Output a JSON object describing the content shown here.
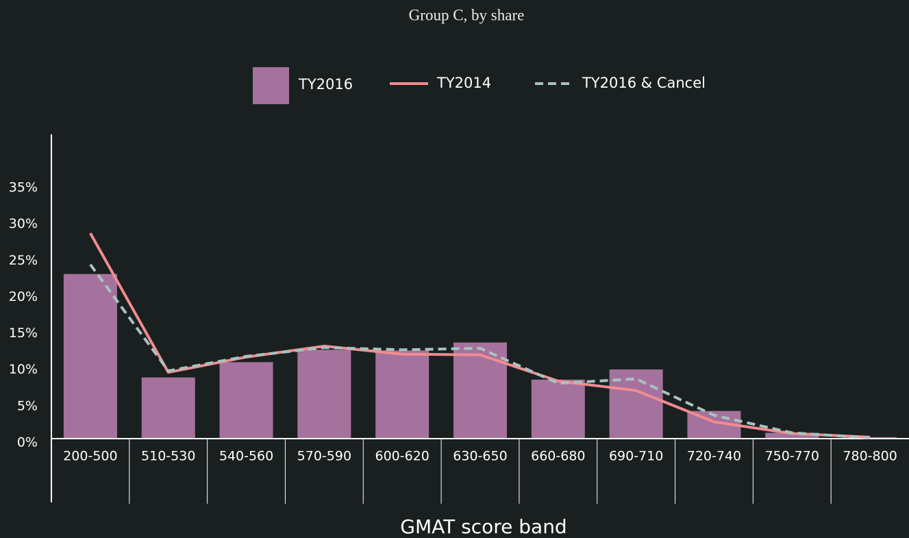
{
  "chart_data": {
    "type": "bar",
    "title": "Group C, by share",
    "x_label": "GMAT score band",
    "categories": [
      "200-500",
      "510-530",
      "540-560",
      "570-590",
      "600-620",
      "630-650",
      "660-680",
      "690-710",
      "720-740",
      "750-770",
      "780-800"
    ],
    "series": [
      {
        "name": "TY2016",
        "style": "bar",
        "color": "#a5729d",
        "values": [
          22.6,
          8.4,
          10.5,
          12.2,
          12.1,
          13.2,
          8.1,
          9.5,
          3.8,
          0.8,
          0.2
        ]
      },
      {
        "name": "TY2014",
        "style": "line",
        "color": "#f28b8f",
        "values": [
          28.2,
          9.1,
          11.2,
          12.7,
          11.6,
          11.5,
          7.9,
          6.6,
          2.3,
          0.7,
          0.2
        ]
      },
      {
        "name": "TY2016 & Cancel",
        "style": "dashed",
        "color": "#a9c2c0",
        "values": [
          23.9,
          9.3,
          11.3,
          12.5,
          12.2,
          12.4,
          7.6,
          8.2,
          3.2,
          0.8,
          0.1
        ]
      }
    ],
    "ylim": [
      0,
      42
    ],
    "yticks": [
      {
        "value": 0,
        "label": "0%"
      },
      {
        "value": 5,
        "label": "5%"
      },
      {
        "value": 10,
        "label": "10%"
      },
      {
        "value": 15,
        "label": "15%"
      },
      {
        "value": 20,
        "label": "20%"
      },
      {
        "value": 25,
        "label": "25%"
      },
      {
        "value": 30,
        "label": "30%"
      },
      {
        "value": 35,
        "label": "35%"
      }
    ]
  }
}
